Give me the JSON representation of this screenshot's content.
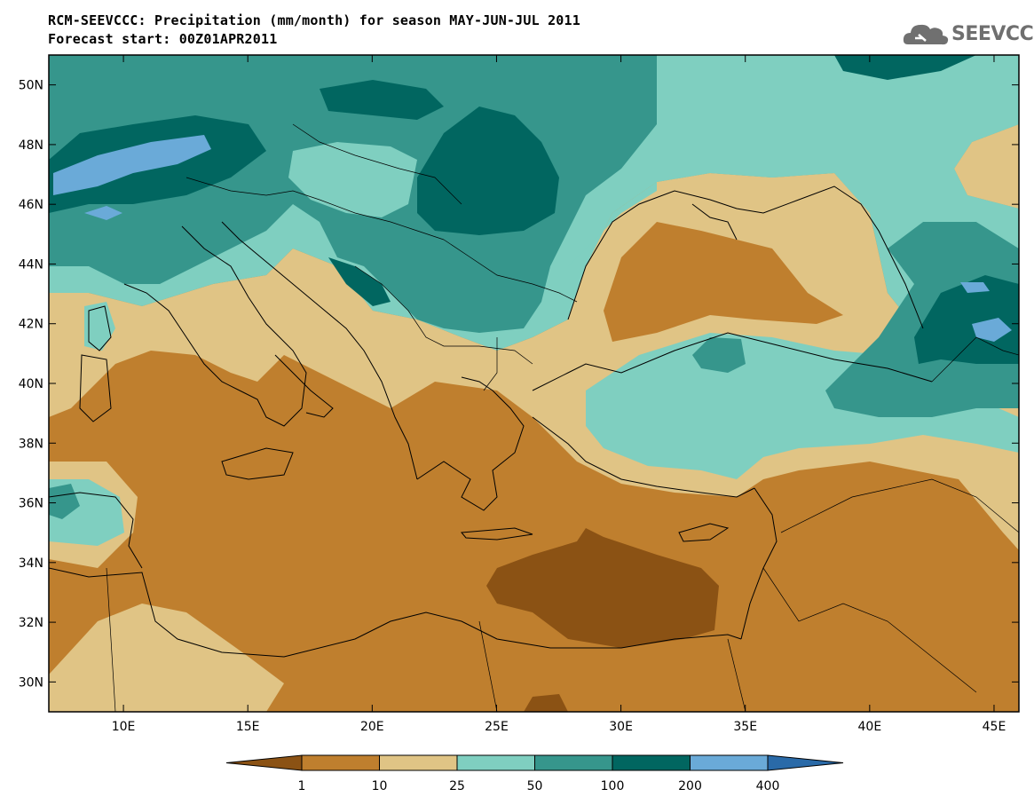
{
  "header": {
    "title_line1": "RCM-SEEVCCC: Precipitation (mm/month) for season MAY-JUN-JUL 2011",
    "title_line2": "Forecast start: 00Z01APR2011"
  },
  "logo": {
    "text": "SEEVCCC",
    "icon": "cloud-logo-icon"
  },
  "map": {
    "lon_range": [
      7,
      46
    ],
    "lat_range": [
      29,
      51
    ],
    "lon_ticks": [
      "10E",
      "15E",
      "20E",
      "25E",
      "30E",
      "35E",
      "40E",
      "45E"
    ],
    "lat_ticks": [
      "50N",
      "48N",
      "46N",
      "44N",
      "42N",
      "40N",
      "38N",
      "36N",
      "34N",
      "32N",
      "30N"
    ]
  },
  "legend": {
    "thresholds": [
      "1",
      "10",
      "25",
      "50",
      "100",
      "200",
      "400"
    ],
    "colors": [
      "#8b5214",
      "#bf7f2e",
      "#e0c485",
      "#7fcfc0",
      "#36968c",
      "#016660",
      "#6aaad8",
      "#2a6aa8"
    ]
  }
}
